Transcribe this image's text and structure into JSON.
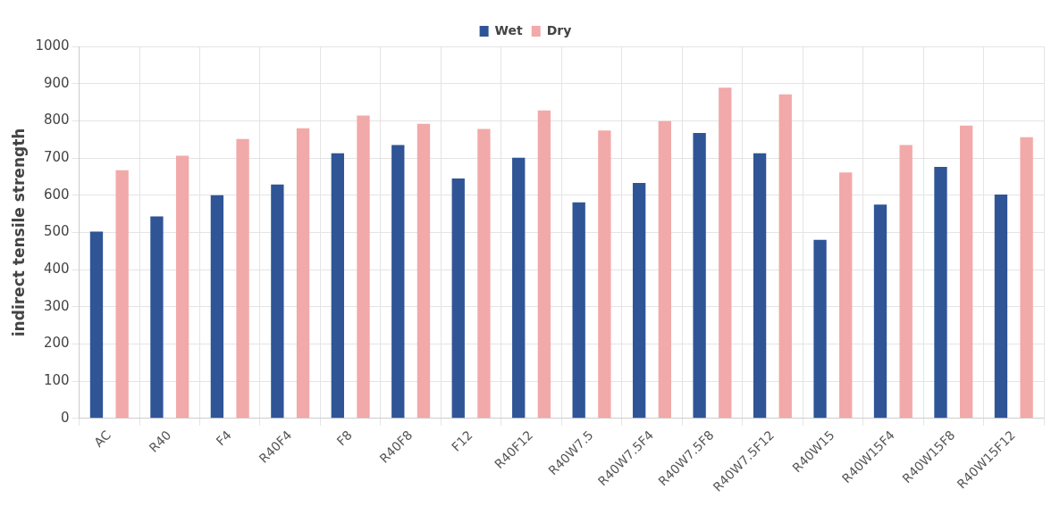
{
  "chart_data": {
    "type": "bar",
    "ylabel": "indirect tensile strength",
    "categories": [
      "AC",
      "R40",
      "F4",
      "R40F4",
      "F8",
      "R40F8",
      "F12",
      "R40F12",
      "R40W7.5",
      "R40W7.5F4",
      "R40W7.5F8",
      "R40W7.5F12",
      "R40W15",
      "R40W15F4",
      "R40W15F8",
      "R40W15F12"
    ],
    "series": [
      {
        "name": "Wet",
        "color": "#2f5597",
        "values": [
          502,
          543,
          600,
          629,
          713,
          735,
          645,
          701,
          581,
          633,
          767,
          713,
          480,
          575,
          676,
          602
        ]
      },
      {
        "name": "Dry",
        "color": "#f2a9a9",
        "values": [
          667,
          706,
          751,
          780,
          814,
          792,
          778,
          828,
          774,
          799,
          889,
          871,
          661,
          735,
          787,
          756
        ]
      }
    ],
    "ylim": [
      0,
      1000
    ],
    "yticks": [
      0,
      100,
      200,
      300,
      400,
      500,
      600,
      700,
      800,
      900,
      1000
    ],
    "grid": true,
    "legend": "top"
  }
}
